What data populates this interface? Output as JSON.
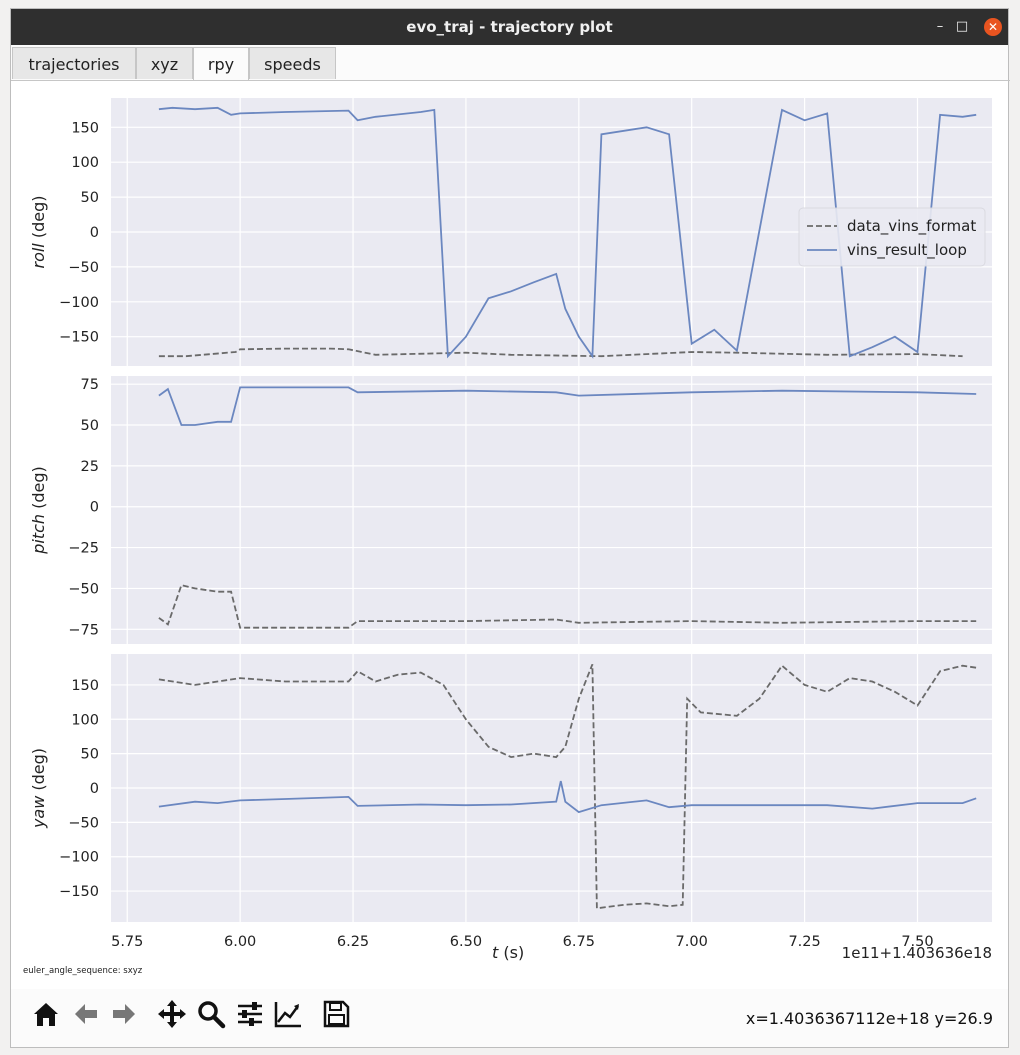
{
  "window": {
    "title": "evo_traj - trajectory plot"
  },
  "tabs": [
    {
      "label": "trajectories",
      "active": false
    },
    {
      "label": "xyz",
      "active": false
    },
    {
      "label": "rpy",
      "active": true
    },
    {
      "label": "speeds",
      "active": false
    }
  ],
  "toolbar": {
    "icons": [
      "home-icon",
      "back-icon",
      "forward-icon",
      "pan-icon",
      "zoom-icon",
      "configure-subplots-icon",
      "edit-axis-icon",
      "save-icon"
    ],
    "coords": "x=1.4036367112e+18  y=26.9"
  },
  "footnote": "euler_angle_sequence: sxyz",
  "chart_data": {
    "type": "line",
    "xlabel_italic": "t",
    "xlabel_rest": " (s)",
    "x_ticks": [
      "5.75",
      "6.00",
      "6.25",
      "6.50",
      "6.75",
      "7.00",
      "7.25",
      "7.50"
    ],
    "x_tick_values": [
      5.75,
      6.0,
      6.25,
      6.5,
      6.75,
      7.0,
      7.25,
      7.5
    ],
    "x_offset_label": "1e11+1.403636e18",
    "xlim": [
      5.714,
      7.665
    ],
    "legend_placement": "right",
    "series": [
      {
        "name": "data_vins_format",
        "color": "#6a6a6a",
        "style": "dashed"
      },
      {
        "name": "vins_result_loop",
        "color": "#6b87c0",
        "style": "solid"
      }
    ],
    "subplots": [
      {
        "ylabel_italic": "roll",
        "ylabel_rest": " (deg)",
        "ylim": [
          -192,
          192
        ],
        "yticks": [
          150,
          100,
          50,
          0,
          -50,
          -100,
          -150
        ],
        "ref_points": [
          [
            5.82,
            -178
          ],
          [
            5.88,
            -178
          ],
          [
            5.99,
            -172
          ],
          [
            6.0,
            -168
          ],
          [
            6.1,
            -167
          ],
          [
            6.2,
            -167
          ],
          [
            6.24,
            -168
          ],
          [
            6.3,
            -176
          ],
          [
            6.5,
            -173
          ],
          [
            6.6,
            -176
          ],
          [
            6.8,
            -178
          ],
          [
            7.0,
            -172
          ],
          [
            7.1,
            -173
          ],
          [
            7.3,
            -176
          ],
          [
            7.5,
            -175
          ],
          [
            7.6,
            -178
          ]
        ],
        "data_values": [
          [
            5.82,
            176
          ],
          [
            5.85,
            178
          ],
          [
            5.9,
            176
          ],
          [
            5.95,
            178
          ],
          [
            5.98,
            168
          ],
          [
            6.0,
            170
          ],
          [
            6.1,
            172
          ],
          [
            6.24,
            174
          ],
          [
            6.26,
            160
          ],
          [
            6.3,
            165
          ],
          [
            6.4,
            172
          ],
          [
            6.43,
            175
          ],
          [
            6.46,
            -178
          ],
          [
            6.5,
            -150
          ],
          [
            6.55,
            -95
          ],
          [
            6.6,
            -85
          ],
          [
            6.65,
            -72
          ],
          [
            6.7,
            -60
          ],
          [
            6.72,
            -110
          ],
          [
            6.75,
            -150
          ],
          [
            6.78,
            -178
          ],
          [
            6.8,
            140
          ],
          [
            6.9,
            150
          ],
          [
            6.95,
            140
          ],
          [
            7.0,
            -160
          ],
          [
            7.05,
            -140
          ],
          [
            7.1,
            -170
          ],
          [
            7.2,
            175
          ],
          [
            7.25,
            160
          ],
          [
            7.3,
            170
          ],
          [
            7.35,
            -178
          ],
          [
            7.4,
            -165
          ],
          [
            7.45,
            -150
          ],
          [
            7.5,
            -172
          ],
          [
            7.55,
            168
          ],
          [
            7.6,
            165
          ],
          [
            7.63,
            168
          ]
        ]
      },
      {
        "ylabel_italic": "pitch",
        "ylabel_rest": " (deg)",
        "ylim": [
          -84,
          80
        ],
        "yticks": [
          75,
          50,
          25,
          0,
          -25,
          -50,
          -75
        ],
        "ref_points": [
          [
            5.82,
            -68
          ],
          [
            5.84,
            -72
          ],
          [
            5.87,
            -48
          ],
          [
            5.9,
            -50
          ],
          [
            5.95,
            -52
          ],
          [
            5.98,
            -52
          ],
          [
            6.0,
            -74
          ],
          [
            6.1,
            -74
          ],
          [
            6.24,
            -74
          ],
          [
            6.26,
            -70
          ],
          [
            6.5,
            -70
          ],
          [
            6.7,
            -69
          ],
          [
            6.75,
            -71
          ],
          [
            7.0,
            -70
          ],
          [
            7.2,
            -71
          ],
          [
            7.5,
            -70
          ],
          [
            7.63,
            -70
          ]
        ],
        "data_values": [
          [
            5.82,
            68
          ],
          [
            5.84,
            72
          ],
          [
            5.87,
            50
          ],
          [
            5.9,
            50
          ],
          [
            5.95,
            52
          ],
          [
            5.98,
            52
          ],
          [
            6.0,
            73
          ],
          [
            6.1,
            73
          ],
          [
            6.24,
            73
          ],
          [
            6.26,
            70
          ],
          [
            6.5,
            71
          ],
          [
            6.7,
            70
          ],
          [
            6.75,
            68
          ],
          [
            7.0,
            70
          ],
          [
            7.2,
            71
          ],
          [
            7.5,
            70
          ],
          [
            7.63,
            69
          ]
        ]
      },
      {
        "ylabel_italic": "yaw",
        "ylabel_rest": " (deg)",
        "ylim": [
          -195,
          195
        ],
        "yticks": [
          150,
          100,
          50,
          0,
          -50,
          -100,
          -150
        ],
        "ref_points": [
          [
            5.82,
            158
          ],
          [
            5.9,
            150
          ],
          [
            5.95,
            155
          ],
          [
            6.0,
            160
          ],
          [
            6.1,
            155
          ],
          [
            6.24,
            155
          ],
          [
            6.26,
            170
          ],
          [
            6.3,
            155
          ],
          [
            6.35,
            165
          ],
          [
            6.4,
            168
          ],
          [
            6.45,
            150
          ],
          [
            6.5,
            100
          ],
          [
            6.55,
            60
          ],
          [
            6.6,
            45
          ],
          [
            6.65,
            50
          ],
          [
            6.7,
            45
          ],
          [
            6.72,
            60
          ],
          [
            6.75,
            130
          ],
          [
            6.78,
            180
          ],
          [
            6.79,
            -175
          ],
          [
            6.85,
            -170
          ],
          [
            6.9,
            -168
          ],
          [
            6.95,
            -172
          ],
          [
            6.98,
            -170
          ],
          [
            6.99,
            130
          ],
          [
            7.02,
            110
          ],
          [
            7.1,
            105
          ],
          [
            7.15,
            130
          ],
          [
            7.2,
            178
          ],
          [
            7.25,
            150
          ],
          [
            7.3,
            140
          ],
          [
            7.35,
            160
          ],
          [
            7.4,
            155
          ],
          [
            7.45,
            140
          ],
          [
            7.5,
            120
          ],
          [
            7.55,
            170
          ],
          [
            7.6,
            178
          ],
          [
            7.63,
            175
          ]
        ],
        "data_values": [
          [
            5.82,
            -27
          ],
          [
            5.9,
            -20
          ],
          [
            5.95,
            -22
          ],
          [
            6.0,
            -18
          ],
          [
            6.1,
            -16
          ],
          [
            6.24,
            -13
          ],
          [
            6.26,
            -26
          ],
          [
            6.4,
            -24
          ],
          [
            6.5,
            -25
          ],
          [
            6.6,
            -24
          ],
          [
            6.7,
            -20
          ],
          [
            6.71,
            10
          ],
          [
            6.72,
            -20
          ],
          [
            6.75,
            -35
          ],
          [
            6.8,
            -25
          ],
          [
            6.9,
            -18
          ],
          [
            6.95,
            -28
          ],
          [
            7.0,
            -25
          ],
          [
            7.2,
            -25
          ],
          [
            7.3,
            -25
          ],
          [
            7.4,
            -30
          ],
          [
            7.5,
            -22
          ],
          [
            7.6,
            -22
          ],
          [
            7.63,
            -15
          ]
        ]
      }
    ]
  }
}
